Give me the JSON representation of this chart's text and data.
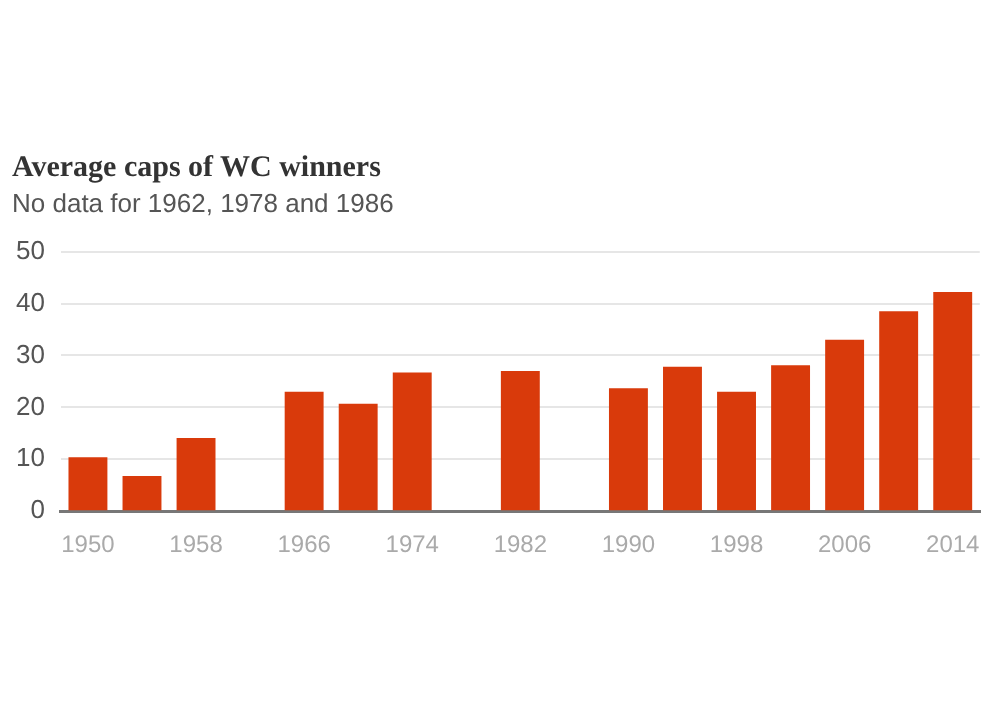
{
  "chart_data": {
    "type": "bar",
    "title": "Average caps of WC winners",
    "subtitle": "No data for 1962, 1978 and 1986",
    "categories": [
      "1950",
      null,
      "1958",
      null,
      "1966",
      null,
      "1974",
      null,
      "1982",
      null,
      "1990",
      null,
      "1998",
      null,
      "2006",
      null,
      "2014"
    ],
    "values": [
      10.4,
      6.8,
      14.1,
      null,
      23,
      20.7,
      26.7,
      null,
      27,
      null,
      23.7,
      27.8,
      23,
      28.1,
      33,
      38.5,
      42.2
    ],
    "color": "#d93a0b",
    "ylim": [
      0,
      50
    ],
    "yticks": [
      0,
      10,
      20,
      30,
      40,
      50
    ],
    "grid": "y"
  }
}
